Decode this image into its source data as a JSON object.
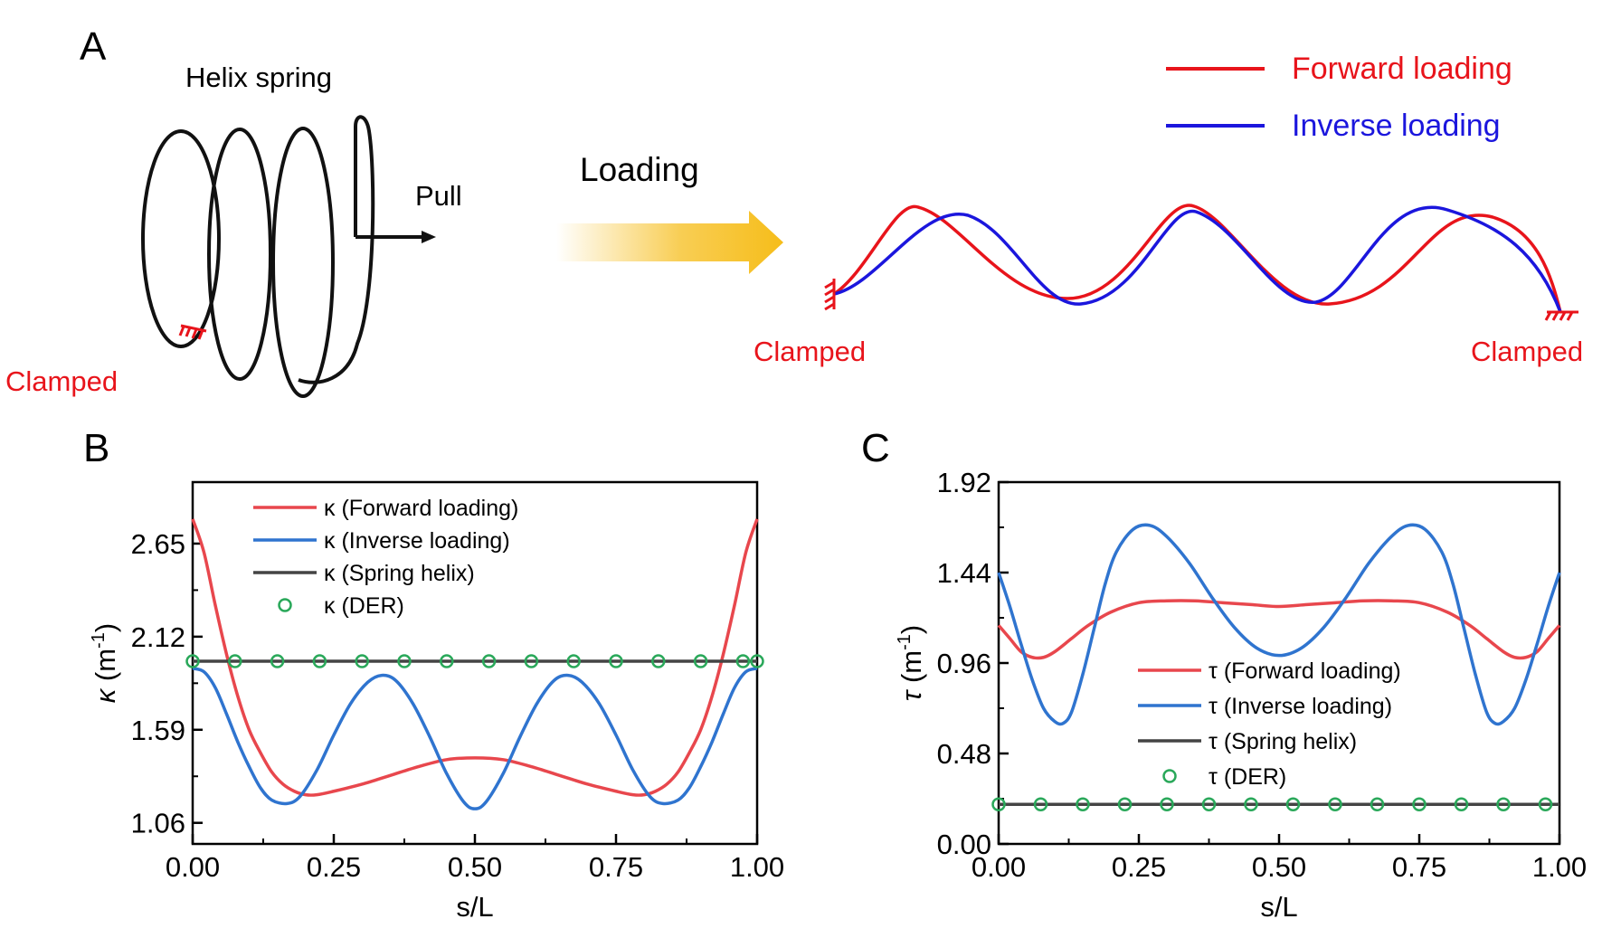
{
  "panel_a": {
    "label": "A",
    "helix_title": "Helix spring",
    "pull_label": "Pull",
    "loading_label": "Loading",
    "clamped_helix": "Clamped",
    "clamped_left": "Clamped",
    "clamped_right": "Clamped",
    "legend": [
      {
        "label": "Forward loading",
        "color": "#e8141b"
      },
      {
        "label": "Inverse loading",
        "color": "#1b16dd"
      }
    ],
    "arrow_color": "#f6bd1a"
  },
  "chart_data": [
    {
      "panel": "B",
      "type": "line",
      "xlabel": "s/L",
      "ylabel_symbol": "κ",
      "ylabel_unit": " (m",
      "ylabel_exp": "-1",
      "ylabel_close": ")",
      "xlim": [
        0,
        1
      ],
      "ylim": [
        0.94,
        3.0
      ],
      "xticks": [
        0.0,
        0.25,
        0.5,
        0.75,
        1.0
      ],
      "xtick_labels": [
        "0.00",
        "0.25",
        "0.50",
        "0.75",
        "1.00"
      ],
      "yticks": [
        1.06,
        1.59,
        2.12,
        2.65
      ],
      "ytick_labels": [
        "1.06",
        "1.59",
        "2.12",
        "2.65"
      ],
      "legend_position": "top-left",
      "series": [
        {
          "name": "Forward loading",
          "legend": "κ (Forward loading)",
          "color": "#e8474d",
          "style": "line",
          "x": [
            0,
            0.02,
            0.04,
            0.06,
            0.08,
            0.1,
            0.12,
            0.14,
            0.16,
            0.18,
            0.2,
            0.22,
            0.25,
            0.3,
            0.35,
            0.4,
            0.45,
            0.5,
            0.55,
            0.6,
            0.65,
            0.7,
            0.75,
            0.78,
            0.8,
            0.82,
            0.84,
            0.86,
            0.88,
            0.9,
            0.92,
            0.94,
            0.96,
            0.98,
            1.0
          ],
          "y": [
            2.79,
            2.6,
            2.3,
            2.02,
            1.78,
            1.59,
            1.46,
            1.35,
            1.28,
            1.24,
            1.22,
            1.22,
            1.24,
            1.28,
            1.33,
            1.38,
            1.42,
            1.43,
            1.42,
            1.38,
            1.33,
            1.28,
            1.24,
            1.22,
            1.22,
            1.24,
            1.28,
            1.35,
            1.46,
            1.59,
            1.78,
            2.02,
            2.3,
            2.6,
            2.79
          ]
        },
        {
          "name": "Inverse loading",
          "legend": "κ (Inverse loading)",
          "color": "#2f74cf",
          "style": "line",
          "x": [
            0,
            0.02,
            0.04,
            0.06,
            0.08,
            0.1,
            0.12,
            0.14,
            0.167,
            0.19,
            0.22,
            0.25,
            0.28,
            0.31,
            0.335,
            0.36,
            0.39,
            0.42,
            0.45,
            0.48,
            0.5,
            0.52,
            0.55,
            0.58,
            0.61,
            0.64,
            0.665,
            0.69,
            0.72,
            0.75,
            0.78,
            0.81,
            0.833,
            0.86,
            0.88,
            0.9,
            0.92,
            0.94,
            0.96,
            0.98,
            1.0
          ],
          "y": [
            1.94,
            1.92,
            1.83,
            1.68,
            1.52,
            1.38,
            1.26,
            1.19,
            1.17,
            1.21,
            1.36,
            1.56,
            1.74,
            1.86,
            1.9,
            1.87,
            1.74,
            1.55,
            1.34,
            1.18,
            1.14,
            1.18,
            1.34,
            1.55,
            1.74,
            1.87,
            1.9,
            1.86,
            1.74,
            1.56,
            1.36,
            1.21,
            1.17,
            1.19,
            1.26,
            1.38,
            1.52,
            1.68,
            1.83,
            1.92,
            1.94
          ]
        },
        {
          "name": "Spring helix",
          "legend": "κ (Spring helix)",
          "color": "#444444",
          "style": "line",
          "x": [
            0,
            1.0
          ],
          "y": [
            1.98,
            1.98
          ]
        },
        {
          "name": "DER",
          "legend": "κ (DER)",
          "color": "#2aa85a",
          "style": "markers",
          "x": [
            0.0,
            0.075,
            0.15,
            0.225,
            0.3,
            0.375,
            0.45,
            0.525,
            0.6,
            0.675,
            0.75,
            0.825,
            0.9,
            0.975,
            1.0
          ],
          "y": [
            1.98,
            1.98,
            1.98,
            1.98,
            1.98,
            1.98,
            1.98,
            1.98,
            1.98,
            1.98,
            1.98,
            1.98,
            1.98,
            1.98,
            1.98
          ]
        }
      ]
    },
    {
      "panel": "C",
      "type": "line",
      "xlabel": "s/L",
      "ylabel_symbol": "τ",
      "ylabel_unit": " (m",
      "ylabel_exp": "-1",
      "ylabel_close": ")",
      "xlim": [
        0,
        1
      ],
      "ylim": [
        0.0,
        1.92
      ],
      "xticks": [
        0.0,
        0.25,
        0.5,
        0.75,
        1.0
      ],
      "xtick_labels": [
        "0.00",
        "0.25",
        "0.50",
        "0.75",
        "1.00"
      ],
      "yticks": [
        0.0,
        0.48,
        0.96,
        1.44,
        1.92
      ],
      "ytick_labels": [
        "0.00",
        "0.48",
        "0.96",
        "1.44",
        "1.92"
      ],
      "legend_position": "center-right",
      "series": [
        {
          "name": "Forward loading",
          "legend": "τ (Forward loading)",
          "color": "#e8474d",
          "style": "line",
          "x": [
            0,
            0.02,
            0.04,
            0.06,
            0.08,
            0.1,
            0.13,
            0.16,
            0.2,
            0.25,
            0.3,
            0.35,
            0.4,
            0.45,
            0.5,
            0.55,
            0.6,
            0.65,
            0.7,
            0.75,
            0.8,
            0.84,
            0.87,
            0.9,
            0.92,
            0.94,
            0.96,
            0.98,
            1.0
          ],
          "y": [
            1.16,
            1.09,
            1.02,
            0.99,
            0.99,
            1.02,
            1.09,
            1.16,
            1.23,
            1.28,
            1.29,
            1.29,
            1.28,
            1.27,
            1.26,
            1.27,
            1.28,
            1.29,
            1.29,
            1.28,
            1.23,
            1.16,
            1.09,
            1.02,
            0.99,
            0.99,
            1.02,
            1.09,
            1.16
          ]
        },
        {
          "name": "Inverse loading",
          "legend": "τ (Inverse loading)",
          "color": "#2f74cf",
          "style": "line",
          "x": [
            0,
            0.02,
            0.04,
            0.06,
            0.08,
            0.1,
            0.115,
            0.13,
            0.15,
            0.17,
            0.19,
            0.21,
            0.24,
            0.27,
            0.3,
            0.34,
            0.38,
            0.42,
            0.46,
            0.5,
            0.54,
            0.58,
            0.62,
            0.66,
            0.7,
            0.73,
            0.76,
            0.79,
            0.81,
            0.83,
            0.85,
            0.87,
            0.885,
            0.9,
            0.92,
            0.94,
            0.96,
            0.98,
            1.0
          ],
          "y": [
            1.44,
            1.26,
            1.06,
            0.87,
            0.72,
            0.65,
            0.64,
            0.7,
            0.9,
            1.14,
            1.38,
            1.55,
            1.67,
            1.69,
            1.63,
            1.49,
            1.31,
            1.15,
            1.04,
            1.0,
            1.04,
            1.15,
            1.31,
            1.49,
            1.63,
            1.69,
            1.67,
            1.55,
            1.38,
            1.14,
            0.9,
            0.7,
            0.64,
            0.65,
            0.72,
            0.87,
            1.06,
            1.26,
            1.44
          ]
        },
        {
          "name": "Spring helix",
          "legend": "τ (Spring helix)",
          "color": "#444444",
          "style": "line",
          "x": [
            0,
            1.0
          ],
          "y": [
            0.21,
            0.21
          ]
        },
        {
          "name": "DER",
          "legend": "τ (DER)",
          "color": "#2aa85a",
          "style": "markers",
          "x": [
            0.0,
            0.075,
            0.15,
            0.225,
            0.3,
            0.375,
            0.45,
            0.525,
            0.6,
            0.675,
            0.75,
            0.825,
            0.9,
            0.975
          ],
          "y": [
            0.21,
            0.21,
            0.21,
            0.21,
            0.21,
            0.21,
            0.21,
            0.21,
            0.21,
            0.21,
            0.21,
            0.21,
            0.21,
            0.21
          ]
        }
      ]
    }
  ]
}
